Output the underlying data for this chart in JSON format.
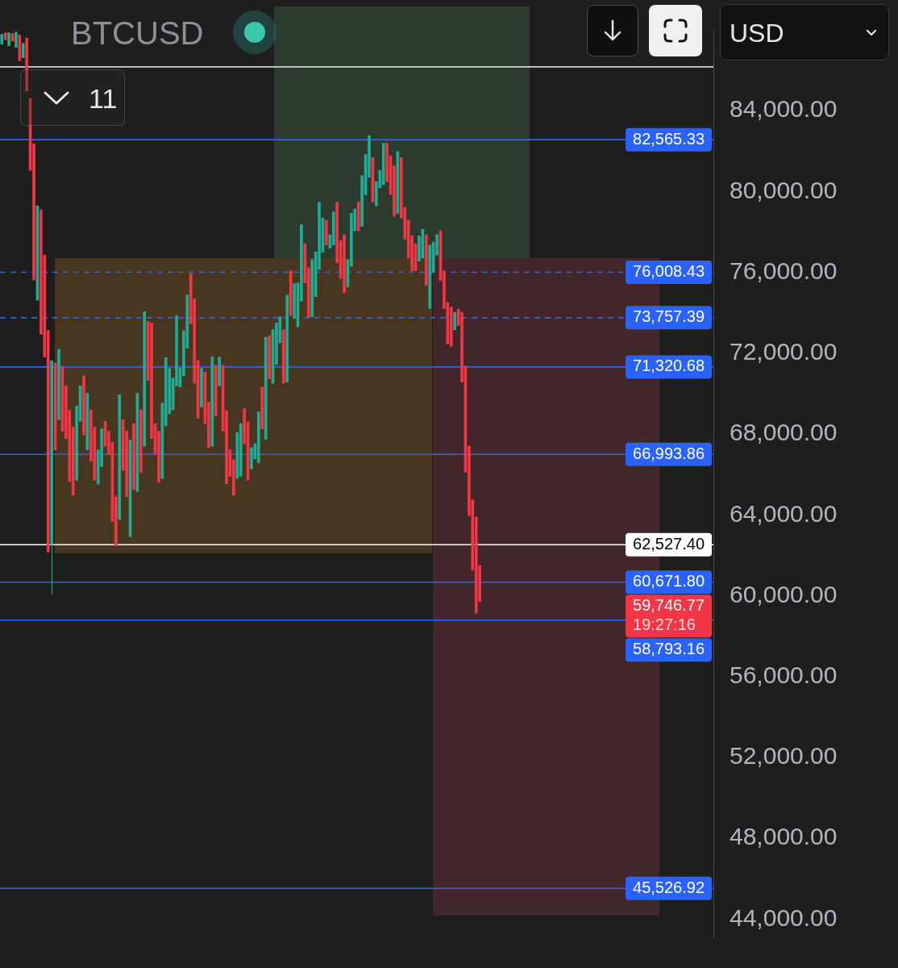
{
  "chart_data": {
    "type": "candlestick",
    "title": "BTCUSD",
    "ylabel": "USD",
    "categories": [
      null,
      null,
      null,
      null,
      null,
      null,
      null,
      null,
      null,
      null,
      null,
      null,
      null,
      null,
      null,
      null,
      null,
      null,
      null,
      null,
      null,
      null,
      null,
      null,
      null,
      null,
      null,
      null,
      null,
      null,
      null,
      null,
      null,
      null,
      null,
      null,
      null,
      null,
      null,
      null,
      null,
      null,
      null,
      null,
      null,
      null,
      null,
      null,
      null,
      null,
      null,
      null,
      null,
      null,
      null,
      null,
      null,
      null,
      null,
      null,
      null,
      null,
      null,
      null,
      null,
      null,
      null,
      null,
      null,
      null,
      null,
      null,
      null,
      null,
      null,
      null,
      null,
      null,
      null,
      null,
      null,
      null,
      null,
      null,
      null,
      null,
      null,
      null,
      null,
      null,
      null,
      null,
      null,
      null,
      null,
      null,
      null,
      null,
      null,
      null,
      null,
      null,
      null,
      null,
      null,
      null,
      null,
      null,
      null,
      null,
      null,
      null,
      null,
      null,
      null,
      null,
      null,
      null,
      null,
      null,
      null,
      null,
      null,
      null,
      null,
      null,
      null,
      null,
      null,
      null,
      null,
      null,
      null,
      null,
      null,
      null,
      null,
      null,
      null,
      null,
      null,
      null,
      null,
      null,
      null,
      null,
      null,
      null,
      null,
      null,
      null,
      null,
      null,
      null,
      null,
      null,
      null,
      null,
      null,
      null,
      null,
      null,
      null,
      null,
      null,
      null,
      null,
      null,
      null,
      null,
      null,
      null,
      null,
      null,
      null,
      null,
      null,
      null,
      null,
      null,
      null,
      null,
      null,
      null,
      null,
      null,
      null,
      null,
      null,
      null,
      null,
      null,
      null,
      null,
      null,
      null,
      null,
      null,
      null,
      null
    ],
    "ohlc": [
      [
        87290,
        87780,
        87290,
        87780
      ],
      [
        87850,
        87850,
        87510,
        87510
      ],
      [
        87210,
        87850,
        87210,
        87850
      ],
      [
        87810,
        87810,
        87440,
        87440
      ],
      [
        87140,
        87890,
        87140,
        87890
      ],
      [
        87740,
        87740,
        86470,
        86470
      ],
      [
        86620,
        87330,
        86620,
        87330
      ],
      [
        87590,
        87590,
        84970,
        84970
      ],
      [
        84600,
        84600,
        81050,
        81050
      ],
      [
        82360,
        82360,
        75630,
        75630
      ],
      [
        74620,
        79290,
        74620,
        79290
      ],
      [
        79100,
        79100,
        72940,
        72940
      ],
      [
        76860,
        76860,
        71810,
        71810
      ],
      [
        73120,
        73120,
        62170,
        62170
      ],
      [
        62540,
        71630,
        60040,
        71630
      ],
      [
        71520,
        71520,
        67220,
        67220
      ],
      [
        68710,
        72190,
        68710,
        72190
      ],
      [
        71330,
        71330,
        68150,
        68150
      ],
      [
        70390,
        70390,
        67780,
        67780
      ],
      [
        69200,
        69200,
        65650,
        65650
      ],
      [
        68340,
        68340,
        64970,
        64970
      ],
      [
        65720,
        69380,
        65720,
        69380
      ],
      [
        68640,
        70390,
        68640,
        70390
      ],
      [
        70880,
        70880,
        67960,
        67960
      ],
      [
        67220,
        70020,
        67220,
        70020
      ],
      [
        69200,
        69200,
        66660,
        66660
      ],
      [
        68340,
        68340,
        65720,
        65720
      ],
      [
        65530,
        67220,
        65530,
        67220
      ],
      [
        66390,
        68260,
        66390,
        68260
      ],
      [
        68640,
        68640,
        67400,
        67400
      ],
      [
        68150,
        68150,
        67030,
        67030
      ],
      [
        67590,
        67590,
        63670,
        63670
      ],
      [
        64900,
        64900,
        62470,
        62470
      ],
      [
        63780,
        69950,
        63780,
        69950
      ],
      [
        68710,
        68710,
        66210,
        66210
      ],
      [
        68150,
        68150,
        64900,
        64900
      ],
      [
        62920,
        67700,
        62920,
        67700
      ],
      [
        68520,
        68520,
        65270,
        65270
      ],
      [
        65160,
        70020,
        65160,
        70020
      ],
      [
        69200,
        69200,
        66100,
        66100
      ],
      [
        67400,
        74060,
        67400,
        74060
      ],
      [
        73570,
        73570,
        70660,
        70660
      ],
      [
        73500,
        73500,
        67780,
        67780
      ],
      [
        68520,
        68520,
        67030,
        67030
      ],
      [
        68150,
        68150,
        65610,
        65610
      ],
      [
        65800,
        69530,
        65800,
        69530
      ],
      [
        68410,
        71780,
        68410,
        71780
      ],
      [
        69010,
        71250,
        69010,
        71250
      ],
      [
        69200,
        70770,
        69200,
        70770
      ],
      [
        70390,
        73870,
        70390,
        73870
      ],
      [
        70320,
        71250,
        70320,
        71250
      ],
      [
        70880,
        73120,
        70880,
        73120
      ],
      [
        72260,
        74880,
        72260,
        74880
      ],
      [
        75930,
        75930,
        73460,
        73460
      ],
      [
        74690,
        74690,
        70510,
        70510
      ],
      [
        71630,
        71630,
        68790,
        68790
      ],
      [
        69350,
        71250,
        69350,
        71250
      ],
      [
        71070,
        71070,
        68520,
        68520
      ],
      [
        69570,
        69570,
        67330,
        67330
      ],
      [
        67400,
        71810,
        67400,
        71810
      ],
      [
        71400,
        71400,
        68900,
        68900
      ],
      [
        70390,
        71810,
        70390,
        71810
      ],
      [
        71400,
        71400,
        68150,
        68150
      ],
      [
        69160,
        69160,
        65530,
        65530
      ],
      [
        67220,
        67220,
        65910,
        65910
      ],
      [
        66730,
        66730,
        64970,
        64970
      ],
      [
        65800,
        68080,
        65800,
        68080
      ],
      [
        65910,
        68520,
        65910,
        68520
      ],
      [
        69270,
        69270,
        67520,
        67520
      ],
      [
        68600,
        68600,
        65720,
        65720
      ],
      [
        66280,
        67330,
        66280,
        67330
      ],
      [
        66770,
        67520,
        66770,
        67520
      ],
      [
        66580,
        69090,
        66580,
        69090
      ],
      [
        70320,
        70320,
        68260,
        68260
      ],
      [
        67740,
        72790,
        67740,
        72790
      ],
      [
        72860,
        72860,
        70730,
        70730
      ],
      [
        70510,
        73160,
        70510,
        73160
      ],
      [
        71440,
        73500,
        71440,
        73500
      ],
      [
        72520,
        73800,
        72520,
        73800
      ],
      [
        73160,
        73160,
        70510,
        70510
      ],
      [
        70580,
        74880,
        70580,
        74880
      ],
      [
        76080,
        76080,
        73870,
        73870
      ],
      [
        73720,
        75440,
        73720,
        75440
      ],
      [
        73310,
        75480,
        73310,
        75480
      ],
      [
        74580,
        78360,
        74580,
        78360
      ],
      [
        77420,
        77420,
        75480,
        75480
      ],
      [
        76230,
        76230,
        73800,
        73800
      ],
      [
        73800,
        76640,
        73800,
        76640
      ],
      [
        74800,
        77010,
        74800,
        77010
      ],
      [
        76150,
        79480,
        76150,
        79480
      ],
      [
        77010,
        78690,
        77010,
        78690
      ],
      [
        78580,
        78580,
        77350,
        77350
      ],
      [
        77200,
        77870,
        77200,
        77870
      ],
      [
        77350,
        78990,
        77350,
        78990
      ],
      [
        79480,
        79480,
        76490,
        76490
      ],
      [
        77570,
        77570,
        75700,
        75700
      ],
      [
        77870,
        77870,
        74990,
        74990
      ],
      [
        75290,
        76640,
        75290,
        76640
      ],
      [
        76300,
        78920,
        76300,
        78920
      ],
      [
        78060,
        79140,
        78060,
        79140
      ],
      [
        79480,
        79480,
        78060,
        78060
      ],
      [
        78280,
        80790,
        78280,
        80790
      ],
      [
        79850,
        81830,
        79850,
        81830
      ],
      [
        80710,
        82770,
        80710,
        82770
      ],
      [
        81680,
        81680,
        79480,
        79480
      ],
      [
        79290,
        80490,
        79290,
        80490
      ],
      [
        80190,
        81050,
        80190,
        81050
      ],
      [
        80340,
        82390,
        80340,
        82390
      ],
      [
        82390,
        82390,
        80490,
        80490
      ],
      [
        81760,
        81760,
        79850,
        79850
      ],
      [
        81270,
        81270,
        78770,
        78770
      ],
      [
        78920,
        81980,
        78920,
        81980
      ],
      [
        81680,
        81680,
        78690,
        78690
      ],
      [
        79220,
        79220,
        77650,
        77650
      ],
      [
        78580,
        78580,
        76710,
        76710
      ],
      [
        77800,
        77800,
        76080,
        76080
      ],
      [
        77420,
        77420,
        76080,
        76080
      ],
      [
        76560,
        77800,
        76560,
        77800
      ],
      [
        76710,
        78130,
        76710,
        78130
      ],
      [
        77870,
        77870,
        75370,
        75370
      ],
      [
        74210,
        77350,
        74210,
        77350
      ],
      [
        76000,
        77500,
        76000,
        77500
      ],
      [
        76860,
        77870,
        76860,
        77870
      ],
      [
        78060,
        78060,
        75590,
        75590
      ],
      [
        76080,
        76080,
        74210,
        74210
      ],
      [
        74510,
        74510,
        72450,
        72450
      ],
      [
        74280,
        74280,
        72340,
        72340
      ],
      [
        73160,
        74020,
        73160,
        74020
      ],
      [
        74170,
        74170,
        73380,
        73380
      ],
      [
        74020,
        74020,
        70580,
        70580
      ],
      [
        71370,
        71370,
        66100,
        66100
      ],
      [
        67400,
        67400,
        63960,
        63960
      ],
      [
        64750,
        64750,
        61270,
        61270
      ],
      [
        63890,
        63890,
        59140,
        59140
      ],
      [
        61500,
        61500,
        59670,
        59746.77
      ],
      null,
      null,
      null,
      null,
      null,
      null,
      null,
      null,
      null,
      null,
      null,
      null,
      null,
      null,
      null,
      null,
      null,
      null,
      null,
      null,
      null,
      null,
      null,
      null,
      null,
      null,
      null,
      null,
      null,
      null,
      null,
      null,
      null,
      null,
      null,
      null,
      null,
      null,
      null,
      null,
      null,
      null,
      null,
      null,
      null,
      null,
      null,
      null,
      null,
      null,
      null,
      null,
      null,
      null,
      null,
      null,
      null,
      null,
      null,
      null,
      null,
      null,
      null,
      null,
      null
    ],
    "colors": [
      "#22ab94",
      "#f23645",
      "#22ab94",
      "#f23645",
      "#22ab94",
      "#f23645",
      "#22ab94",
      "#f23645",
      "#f23645",
      "#f23645",
      "#22ab94",
      "#f23645",
      "#f23645",
      "#f23645",
      "#22ab94",
      "#f23645",
      "#22ab94",
      "#f23645",
      "#f23645",
      "#f23645",
      "#f23645",
      "#22ab94",
      "#22ab94",
      "#f23645",
      "#22ab94",
      "#f23645",
      "#f23645",
      "#22ab94",
      "#22ab94",
      "#f23645",
      "#f23645",
      "#f23645",
      "#f23645",
      "#22ab94",
      "#f23645",
      "#f23645",
      "#22ab94",
      "#f23645",
      "#22ab94",
      "#f23645",
      "#22ab94",
      "#f23645",
      "#f23645",
      "#f23645",
      "#f23645",
      "#22ab94",
      "#22ab94",
      "#22ab94",
      "#22ab94",
      "#22ab94",
      "#22ab94",
      "#22ab94",
      "#22ab94",
      "#f23645",
      "#f23645",
      "#f23645",
      "#22ab94",
      "#f23645",
      "#f23645",
      "#22ab94",
      "#f23645",
      "#22ab94",
      "#f23645",
      "#f23645",
      "#f23645",
      "#f23645",
      "#22ab94",
      "#22ab94",
      "#f23645",
      "#f23645",
      "#22ab94",
      "#22ab94",
      "#22ab94",
      "#f23645",
      "#22ab94",
      "#f23645",
      "#22ab94",
      "#22ab94",
      "#22ab94",
      "#f23645",
      "#22ab94",
      "#f23645",
      "#22ab94",
      "#22ab94",
      "#22ab94",
      "#f23645",
      "#f23645",
      "#22ab94",
      "#22ab94",
      "#22ab94",
      "#22ab94",
      "#f23645",
      "#22ab94",
      "#22ab94",
      "#f23645",
      "#f23645",
      "#f23645",
      "#22ab94",
      "#22ab94",
      "#22ab94",
      "#f23645",
      "#22ab94",
      "#22ab94",
      "#22ab94",
      "#f23645",
      "#22ab94",
      "#22ab94",
      "#22ab94",
      "#f23645",
      "#f23645",
      "#f23645",
      "#22ab94",
      "#f23645",
      "#f23645",
      "#f23645",
      "#f23645",
      "#f23645",
      "#22ab94",
      "#22ab94",
      "#f23645",
      "#22ab94",
      "#22ab94",
      "#22ab94",
      "#f23645",
      "#f23645",
      "#f23645",
      "#f23645",
      "#22ab94",
      "#f23645",
      "#f23645",
      "#f23645",
      "#f23645",
      "#f23645",
      "#f23645",
      "#f23645",
      null,
      null,
      null,
      null,
      null,
      null,
      null,
      null,
      null,
      null,
      null,
      null,
      null,
      null,
      null,
      null,
      null,
      null,
      null,
      null,
      null,
      null,
      null,
      null,
      null,
      null,
      null,
      null,
      null,
      null,
      null,
      null,
      null,
      null,
      null,
      null,
      null,
      null,
      null,
      null,
      null,
      null,
      null,
      null,
      null,
      null,
      null,
      null,
      null,
      null,
      null,
      null,
      null,
      null,
      null,
      null,
      null,
      null,
      null,
      null,
      null,
      null,
      null,
      null,
      null
    ],
    "ylim": [
      43100,
      87960
    ],
    "yticks": [
      {
        "value": 44000,
        "label": "44,000.00"
      },
      {
        "value": 48000,
        "label": "48,000.00"
      },
      {
        "value": 52000,
        "label": "52,000.00"
      },
      {
        "value": 56000,
        "label": "56,000.00"
      },
      {
        "value": 60000,
        "label": "60,000.00"
      },
      {
        "value": 64000,
        "label": "64,000.00"
      },
      {
        "value": 68000,
        "label": "68,000.00"
      },
      {
        "value": 72000,
        "label": "72,000.00"
      },
      {
        "value": 76000,
        "label": "76,000.00"
      },
      {
        "value": 80000,
        "label": "80,000.00"
      },
      {
        "value": 84000,
        "label": "84,000.00"
      }
    ],
    "tick_labels": "y",
    "ref_lines": [
      {
        "axis": "y",
        "value": 86170,
        "color": "#d1d4dc"
      },
      {
        "axis": "y",
        "value": 82565.33,
        "label": "82,565.33",
        "color": "#2962ff"
      },
      {
        "axis": "y",
        "value": 76008.43,
        "label": "76,008.43",
        "color": "#2962ff",
        "line_style": "dashed"
      },
      {
        "axis": "y",
        "value": 73757.39,
        "label": "73,757.39",
        "color": "#2962ff",
        "line_style": "dashed"
      },
      {
        "axis": "y",
        "value": 71320.68,
        "label": "71,320.68",
        "color": "#2962ff"
      },
      {
        "axis": "y",
        "value": 66993.86,
        "label": "66,993.86",
        "color": "#2962ff"
      },
      {
        "axis": "y",
        "value": 62527.4,
        "label": "62,527.40",
        "color": "#ffffff"
      },
      {
        "axis": "y",
        "value": 60671.8,
        "label": "60,671.80",
        "color": "#2962ff"
      },
      {
        "axis": "y",
        "value": 58793.16,
        "label": "58,793.16",
        "color": "#2962ff"
      },
      {
        "axis": "y",
        "value": 45526.92,
        "label": "45,526.92",
        "color": "#2962ff"
      }
    ],
    "annotations": [
      "11",
      "59,746.77",
      "19:27:16"
    ]
  }
}
